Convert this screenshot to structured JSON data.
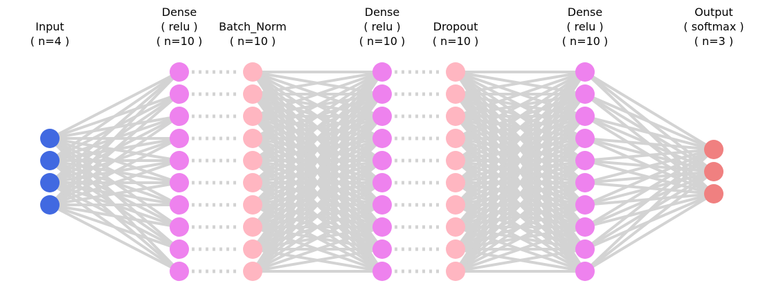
{
  "layers": [
    {
      "name": "Input",
      "activation": "",
      "size_text": "( n=4 )",
      "neurons": 4,
      "kind": "input",
      "color": "#4169e1"
    },
    {
      "name": "Dense",
      "activation": "( relu )",
      "size_text": "( n=10 )",
      "neurons": 10,
      "kind": "dense",
      "color": "#ee82ee"
    },
    {
      "name": "Batch_Norm",
      "activation": "",
      "size_text": "( n=10 )",
      "neurons": 10,
      "kind": "batchnorm",
      "color": "#ffb6c1"
    },
    {
      "name": "Dense",
      "activation": "( relu )",
      "size_text": "( n=10 )",
      "neurons": 10,
      "kind": "dense",
      "color": "#ee82ee"
    },
    {
      "name": "Dropout",
      "activation": "",
      "size_text": "( n=10 )",
      "neurons": 10,
      "kind": "dropout",
      "color": "#ffb6c1"
    },
    {
      "name": "Dense",
      "activation": "( relu )",
      "size_text": "( n=10 )",
      "neurons": 10,
      "kind": "dense",
      "color": "#ee82ee"
    },
    {
      "name": "Output",
      "activation": "( softmax )",
      "size_text": "( n=3 )",
      "neurons": 3,
      "kind": "output",
      "color": "#f08080"
    }
  ],
  "connections": [
    {
      "from": 0,
      "to": 1,
      "style": "full"
    },
    {
      "from": 1,
      "to": 2,
      "style": "one-to-one-dotted"
    },
    {
      "from": 2,
      "to": 3,
      "style": "full"
    },
    {
      "from": 3,
      "to": 4,
      "style": "one-to-one-dotted"
    },
    {
      "from": 4,
      "to": 5,
      "style": "full"
    },
    {
      "from": 5,
      "to": 6,
      "style": "full"
    }
  ],
  "edge_color": "#d3d3d3"
}
